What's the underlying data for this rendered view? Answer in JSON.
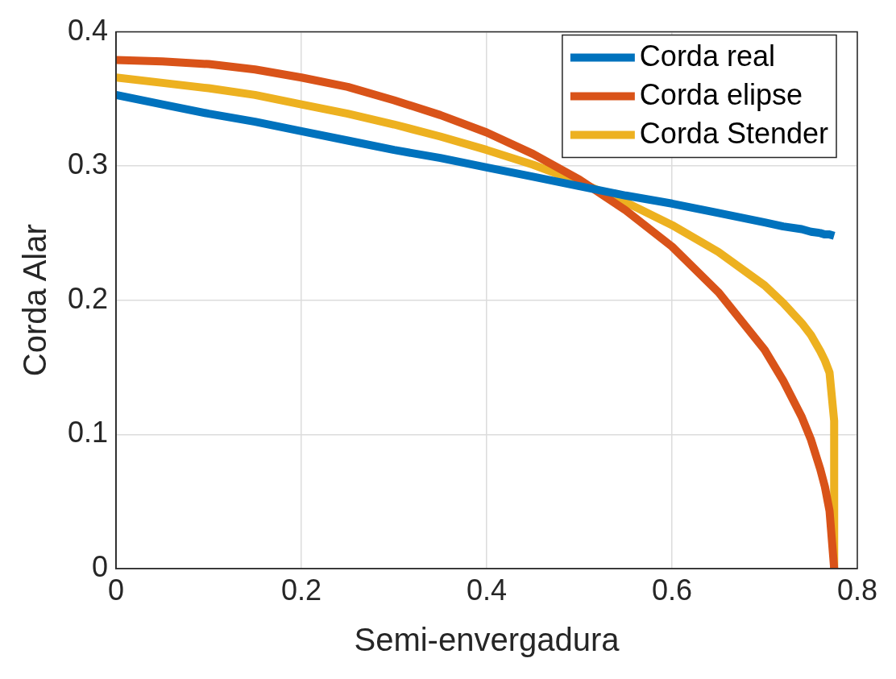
{
  "chart_data": {
    "type": "line",
    "xlabel": "Semi-envergadura",
    "ylabel": "Corda Alar",
    "xlim": [
      0,
      0.8
    ],
    "xticks": [
      0,
      0.2,
      0.4,
      0.6,
      0.8
    ],
    "ylim": [
      0,
      0.4
    ],
    "yticks": [
      0,
      0.1,
      0.2,
      0.3,
      0.4
    ],
    "grid": true,
    "legend": "top right",
    "line_style": "solid",
    "marker": "none",
    "series": [
      {
        "name": "Corda real",
        "color": "#0072bd",
        "x": [
          0,
          0.05,
          0.1,
          0.15,
          0.2,
          0.25,
          0.3,
          0.35,
          0.4,
          0.45,
          0.5,
          0.55,
          0.6,
          0.65,
          0.7,
          0.72,
          0.74,
          0.75,
          0.76,
          0.765,
          0.77,
          0.775
        ],
        "values": [
          0.353,
          0.346,
          0.339,
          0.333,
          0.326,
          0.319,
          0.312,
          0.306,
          0.299,
          0.292,
          0.285,
          0.278,
          0.272,
          0.265,
          0.258,
          0.255,
          0.253,
          0.251,
          0.25,
          0.249,
          0.249,
          0.248
        ]
      },
      {
        "name": "Corda elipse",
        "color": "#d95319",
        "x": [
          0,
          0.05,
          0.1,
          0.15,
          0.2,
          0.25,
          0.3,
          0.35,
          0.4,
          0.45,
          0.5,
          0.55,
          0.6,
          0.65,
          0.7,
          0.72,
          0.74,
          0.75,
          0.76,
          0.765,
          0.77,
          0.775
        ],
        "values": [
          0.379,
          0.378,
          0.376,
          0.372,
          0.366,
          0.359,
          0.349,
          0.338,
          0.325,
          0.309,
          0.29,
          0.267,
          0.24,
          0.206,
          0.163,
          0.14,
          0.113,
          0.096,
          0.074,
          0.061,
          0.043,
          0
        ]
      },
      {
        "name": "Corda Stender",
        "color": "#edb120",
        "x": [
          0,
          0.05,
          0.1,
          0.15,
          0.2,
          0.25,
          0.3,
          0.35,
          0.4,
          0.45,
          0.5,
          0.55,
          0.6,
          0.65,
          0.7,
          0.72,
          0.74,
          0.75,
          0.76,
          0.765,
          0.77,
          0.775,
          0.775
        ],
        "values": [
          0.366,
          0.362,
          0.358,
          0.353,
          0.346,
          0.339,
          0.331,
          0.322,
          0.312,
          0.301,
          0.288,
          0.273,
          0.256,
          0.236,
          0.211,
          0.198,
          0.183,
          0.174,
          0.162,
          0.155,
          0.146,
          0.11,
          0
        ]
      }
    ]
  }
}
